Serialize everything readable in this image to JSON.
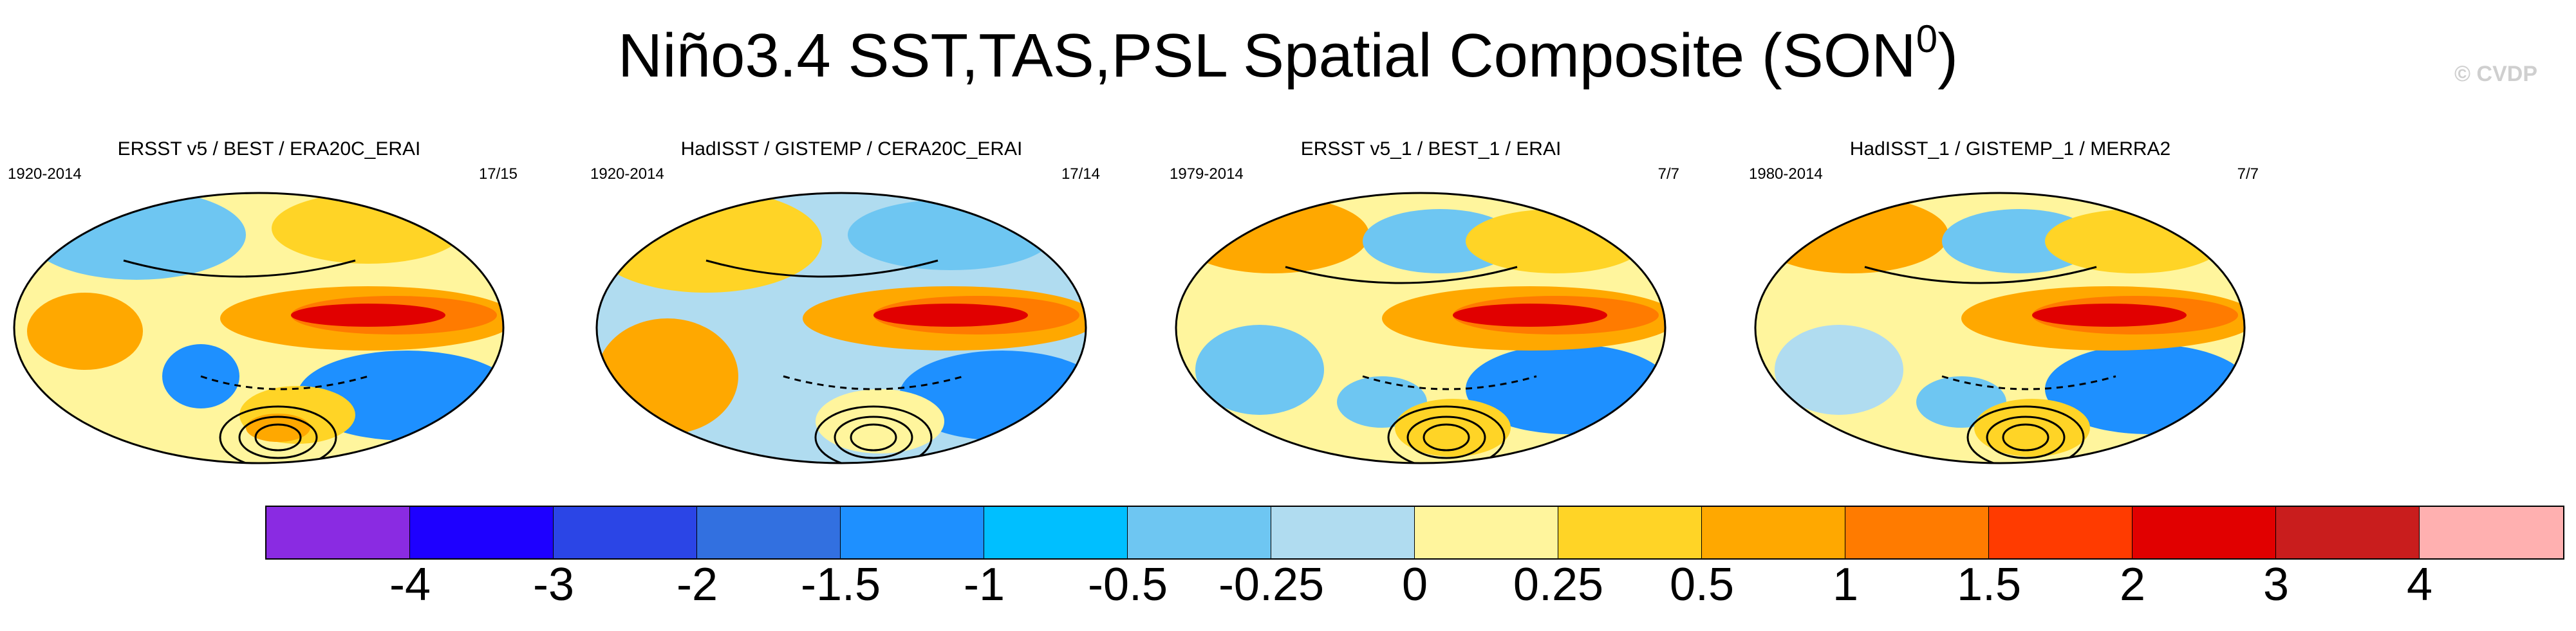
{
  "title": "Niño3.4 SST,TAS,PSL Spatial Composite (SON",
  "title_sup": "0",
  "title_close": ")",
  "credit": "© CVDP",
  "panels": [
    {
      "title": "ERSST v5 / BEST / ERA20C_ERAI",
      "years": "1920-2014",
      "count": "17/15"
    },
    {
      "title": "HadISST / GISTEMP / CERA20C_ERAI",
      "years": "1920-2014",
      "count": "17/14"
    },
    {
      "title": "ERSST v5_1 / BEST_1 / ERAI",
      "years": "1979-2014",
      "count": "7/7"
    },
    {
      "title": "HadISST_1 / GISTEMP_1 / MERRA2",
      "years": "1980-2014",
      "count": "7/7"
    }
  ],
  "colorbar": {
    "colors": [
      "#8a2be2",
      "#1e00ff",
      "#2b45e6",
      "#3270e0",
      "#1e90ff",
      "#00bfff",
      "#6ec6f2",
      "#b0dcf0",
      "#fff59d",
      "#ffd426",
      "#ffa800",
      "#ff7b00",
      "#ff3b00",
      "#e10000",
      "#c91d1d",
      "#ffb0b0"
    ],
    "labels": [
      "-4",
      "-3",
      "-2",
      "-1.5",
      "-1",
      "-0.5",
      "-0.25",
      "0",
      "0.25",
      "0.5",
      "1",
      "1.5",
      "2",
      "3",
      "4"
    ]
  }
}
